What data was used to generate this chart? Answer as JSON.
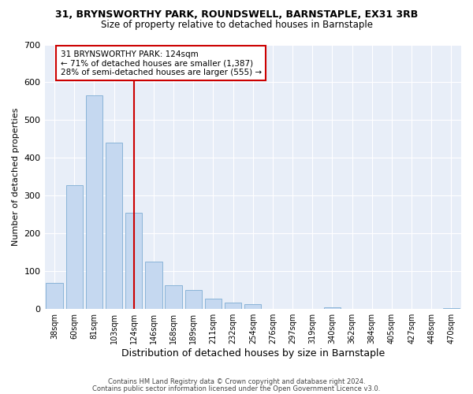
{
  "title1": "31, BRYNSWORTHY PARK, ROUNDSWELL, BARNSTAPLE, EX31 3RB",
  "title2": "Size of property relative to detached houses in Barnstaple",
  "xlabel": "Distribution of detached houses by size in Barnstaple",
  "ylabel": "Number of detached properties",
  "categories": [
    "38sqm",
    "60sqm",
    "81sqm",
    "103sqm",
    "124sqm",
    "146sqm",
    "168sqm",
    "189sqm",
    "211sqm",
    "232sqm",
    "254sqm",
    "276sqm",
    "297sqm",
    "319sqm",
    "340sqm",
    "362sqm",
    "384sqm",
    "405sqm",
    "427sqm",
    "448sqm",
    "470sqm"
  ],
  "values": [
    70,
    328,
    565,
    440,
    255,
    125,
    63,
    50,
    28,
    17,
    12,
    0,
    0,
    0,
    5,
    0,
    0,
    0,
    0,
    0,
    3
  ],
  "bar_color": "#c5d8f0",
  "bar_edge_color": "#8ab4d8",
  "vline_x": 4,
  "vline_color": "#cc0000",
  "annotation_text": "31 BRYNSWORTHY PARK: 124sqm\n← 71% of detached houses are smaller (1,387)\n28% of semi-detached houses are larger (555) →",
  "annotation_box_color": "#ffffff",
  "annotation_box_edge_color": "#cc0000",
  "footer1": "Contains HM Land Registry data © Crown copyright and database right 2024.",
  "footer2": "Contains public sector information licensed under the Open Government Licence v3.0.",
  "bg_color": "#ffffff",
  "plot_bg_color": "#e8eef8",
  "ylim": [
    0,
    700
  ],
  "yticks": [
    0,
    100,
    200,
    300,
    400,
    500,
    600,
    700
  ]
}
